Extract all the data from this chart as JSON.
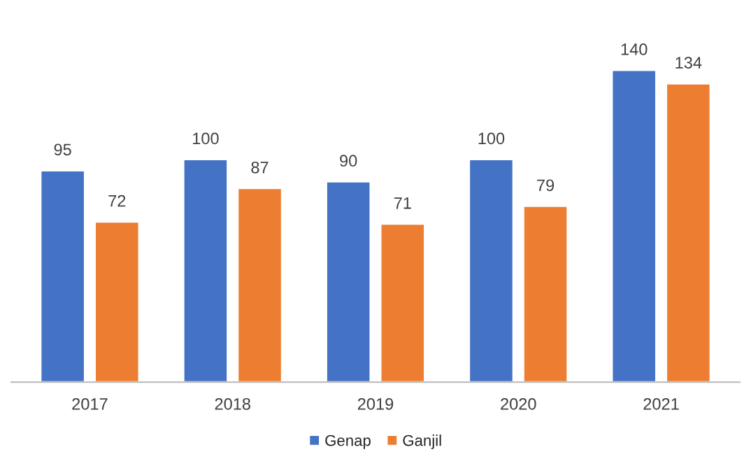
{
  "chart_data": {
    "type": "bar",
    "categories": [
      "2017",
      "2018",
      "2019",
      "2020",
      "2021"
    ],
    "series": [
      {
        "name": "Genap",
        "color": "#4472c4",
        "values": [
          95,
          100,
          90,
          100,
          140
        ]
      },
      {
        "name": "Ganjil",
        "color": "#ed7d31",
        "values": [
          72,
          87,
          71,
          79,
          134
        ]
      }
    ],
    "data_labels": true,
    "legend": "bottom",
    "grid": false,
    "tick_labels": "x"
  }
}
